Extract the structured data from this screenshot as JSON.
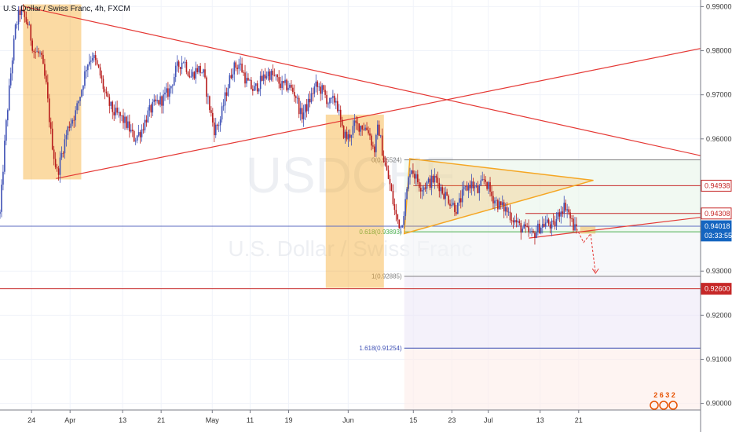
{
  "chart_data": {
    "type": "candlestick",
    "title": "U.S. Dollar / Swiss Franc, 4h, FXCM",
    "watermark": {
      "symbol": "USDCHF",
      "subtitle": "U.S. Dollar / Swiss Franc"
    },
    "ylim": [
      0.8985,
      0.9915
    ],
    "yticks": [
      "0.99000",
      "0.98000",
      "0.97000",
      "0.96000",
      "0.93000",
      "0.92000",
      "0.91000",
      "0.90000"
    ],
    "xlim": [
      0,
      1000
    ],
    "xticks": [
      {
        "label": "24",
        "x": 45
      },
      {
        "label": "Apr",
        "x": 100
      },
      {
        "label": "13",
        "x": 175
      },
      {
        "label": "21",
        "x": 230
      },
      {
        "label": "May",
        "x": 303
      },
      {
        "label": "11",
        "x": 357
      },
      {
        "label": "19",
        "x": 412
      },
      {
        "label": "Jun",
        "x": 497
      },
      {
        "label": "15",
        "x": 590
      },
      {
        "label": "23",
        "x": 645
      },
      {
        "label": "Jul",
        "x": 697
      },
      {
        "label": "13",
        "x": 771
      },
      {
        "label": "21",
        "x": 826
      }
    ],
    "price_tags": [
      {
        "text": "0.94938",
        "price": 0.94938,
        "bg": "#ffffff",
        "fg": "#c62828",
        "border": "#c62828"
      },
      {
        "text": "0.94308",
        "price": 0.94308,
        "bg": "#ffffff",
        "fg": "#c62828",
        "border": "#c62828"
      },
      {
        "text": "0.94018",
        "price": 0.94018,
        "bg": "#1565c0",
        "fg": "#ffffff",
        "border": "#1565c0"
      },
      {
        "text": "03:33:55",
        "price": 0.93808,
        "bg": "#1565c0",
        "fg": "#ffffff",
        "border": "#1565c0"
      },
      {
        "text": "0.92600",
        "price": 0.926,
        "bg": "#c62828",
        "fg": "#ffffff",
        "border": "#c62828"
      }
    ],
    "fib_levels": [
      {
        "text": "0(0.95524)",
        "price": 0.95524,
        "color": "#808080"
      },
      {
        "text": "0.618(0.93893)",
        "price": 0.93893,
        "color": "#4caf50"
      },
      {
        "text": "1(0.92885)",
        "price": 0.92885,
        "color": "#808080"
      },
      {
        "text": "1.618(0.91254)",
        "price": 0.91254,
        "color": "#3f51b5"
      }
    ],
    "fib_x_range": [
      577,
      1000
    ],
    "horizontal_lines": [
      {
        "price": 0.926,
        "color": "#c62828",
        "x0": 0,
        "x1": 1000
      },
      {
        "price": 0.94018,
        "color": "#5c6bc0",
        "x0": 0,
        "x1": 1000
      },
      {
        "price": 0.94938,
        "color": "#c62828",
        "x0": 590,
        "x1": 1000
      },
      {
        "price": 0.94308,
        "color": "#c62828",
        "x0": 750,
        "x1": 1000
      }
    ],
    "trendlines": [
      {
        "from": [
          35,
          0.99
        ],
        "to": [
          1000,
          0.9562
        ],
        "color": "#e53935"
      },
      {
        "from": [
          80,
          0.951
        ],
        "to": [
          1000,
          0.9805
        ],
        "color": "#e53935"
      },
      {
        "from": [
          755,
          0.9375
        ],
        "to": [
          1000,
          0.9422
        ],
        "color": "#e53935"
      }
    ],
    "highlight_boxes": [
      {
        "x0": 33,
        "x1": 116,
        "p0": 0.9508,
        "p1": 0.9905,
        "color": "#f5a623"
      },
      {
        "x0": 465,
        "x1": 548,
        "p0": 0.9262,
        "p1": 0.9655,
        "color": "#f5a623"
      },
      {
        "x0": 828,
        "x1": 850,
        "p0": 0.9385,
        "p1": 0.9402,
        "color": "#f5a623"
      }
    ],
    "triangle": {
      "points": [
        [
          585,
          0.9555
        ],
        [
          847,
          0.9506
        ],
        [
          577,
          0.9385
        ]
      ],
      "fill": "#f5a623",
      "stroke": "#f5a623"
    },
    "projection_arrow": {
      "points": [
        [
          823,
          0.9397
        ],
        [
          833,
          0.9365
        ],
        [
          843,
          0.9385
        ],
        [
          850,
          0.9295
        ]
      ],
      "color": "#e53935"
    },
    "series_path": [
      [
        0,
        0.943
      ],
      [
        8,
        0.962
      ],
      [
        16,
        0.976
      ],
      [
        22,
        0.985
      ],
      [
        28,
        0.989
      ],
      [
        33,
        0.988
      ],
      [
        40,
        0.986
      ],
      [
        48,
        0.98
      ],
      [
        58,
        0.979
      ],
      [
        66,
        0.972
      ],
      [
        72,
        0.962
      ],
      [
        78,
        0.955
      ],
      [
        82,
        0.952
      ],
      [
        90,
        0.958
      ],
      [
        98,
        0.963
      ],
      [
        108,
        0.966
      ],
      [
        116,
        0.971
      ],
      [
        124,
        0.977
      ],
      [
        132,
        0.979
      ],
      [
        142,
        0.975
      ],
      [
        152,
        0.969
      ],
      [
        162,
        0.966
      ],
      [
        172,
        0.965
      ],
      [
        182,
        0.963
      ],
      [
        192,
        0.96
      ],
      [
        202,
        0.962
      ],
      [
        212,
        0.966
      ],
      [
        222,
        0.968
      ],
      [
        232,
        0.969
      ],
      [
        242,
        0.971
      ],
      [
        252,
        0.976
      ],
      [
        262,
        0.978
      ],
      [
        272,
        0.974
      ],
      [
        282,
        0.976
      ],
      [
        290,
        0.975
      ],
      [
        298,
        0.968
      ],
      [
        306,
        0.962
      ],
      [
        314,
        0.964
      ],
      [
        322,
        0.97
      ],
      [
        332,
        0.976
      ],
      [
        342,
        0.977
      ],
      [
        352,
        0.973
      ],
      [
        362,
        0.971
      ],
      [
        372,
        0.973
      ],
      [
        382,
        0.975
      ],
      [
        392,
        0.974
      ],
      [
        402,
        0.972
      ],
      [
        412,
        0.972
      ],
      [
        422,
        0.97
      ],
      [
        430,
        0.965
      ],
      [
        440,
        0.968
      ],
      [
        450,
        0.972
      ],
      [
        460,
        0.971
      ],
      [
        470,
        0.968
      ],
      [
        480,
        0.969
      ],
      [
        488,
        0.962
      ],
      [
        496,
        0.96
      ],
      [
        506,
        0.963
      ],
      [
        516,
        0.963
      ],
      [
        526,
        0.962
      ],
      [
        534,
        0.957
      ],
      [
        540,
        0.963
      ],
      [
        548,
        0.955
      ],
      [
        556,
        0.95
      ],
      [
        564,
        0.943
      ],
      [
        572,
        0.94
      ],
      [
        578,
        0.945
      ],
      [
        586,
        0.954
      ],
      [
        594,
        0.951
      ],
      [
        602,
        0.949
      ],
      [
        612,
        0.95
      ],
      [
        622,
        0.951
      ],
      [
        632,
        0.948
      ],
      [
        642,
        0.946
      ],
      [
        652,
        0.944
      ],
      [
        662,
        0.948
      ],
      [
        672,
        0.95
      ],
      [
        682,
        0.948
      ],
      [
        692,
        0.951
      ],
      [
        702,
        0.947
      ],
      [
        712,
        0.945
      ],
      [
        722,
        0.944
      ],
      [
        732,
        0.942
      ],
      [
        742,
        0.94
      ],
      [
        752,
        0.939
      ],
      [
        760,
        0.938
      ],
      [
        770,
        0.94
      ],
      [
        780,
        0.941
      ],
      [
        790,
        0.94
      ],
      [
        800,
        0.944
      ],
      [
        808,
        0.945
      ],
      [
        814,
        0.942
      ],
      [
        820,
        0.9395
      ],
      [
        824,
        0.9402
      ]
    ],
    "candle_colors": {
      "up": "#3f51b5",
      "down": "#b71c1c"
    },
    "logo": {
      "text": "2 6 3 2",
      "color": "#e65100"
    }
  }
}
